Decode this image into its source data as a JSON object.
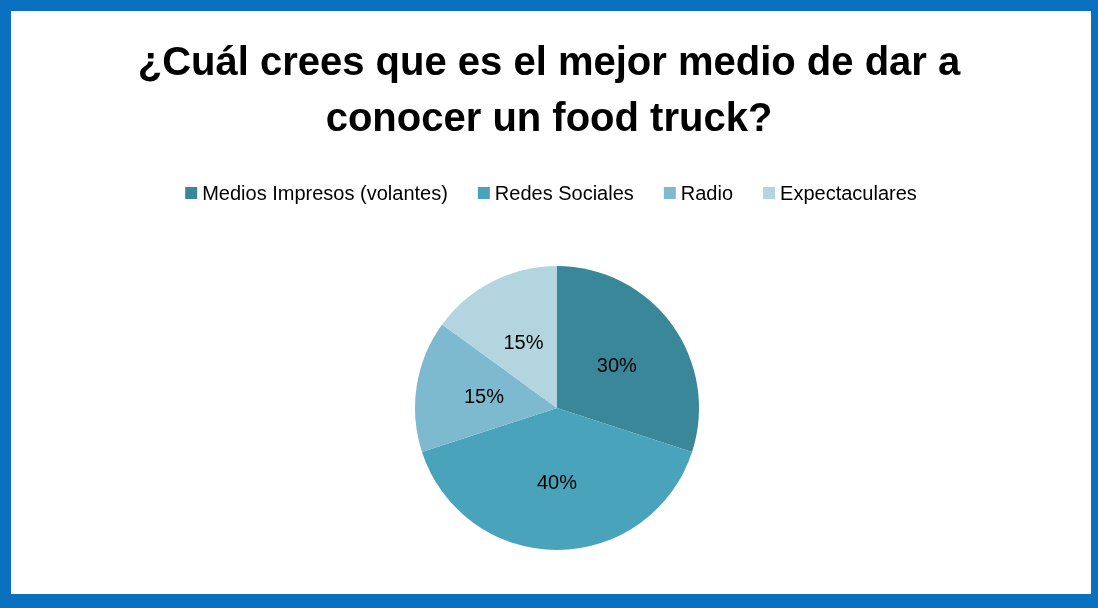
{
  "chart_data": {
    "type": "pie",
    "title": "¿Cuál crees que es el mejor medio de dar a conocer un food truck?",
    "categories": [
      "Medios Impresos (volantes)",
      "Redes Sociales",
      "Radio",
      "Expectaculares"
    ],
    "values": [
      30,
      40,
      15,
      15
    ],
    "colors": [
      "#3a8799",
      "#48a3bb",
      "#7db9cf",
      "#b3d5e0"
    ],
    "legend": "top",
    "value_labels": [
      "30%",
      "40%",
      "15%",
      "15%"
    ]
  }
}
